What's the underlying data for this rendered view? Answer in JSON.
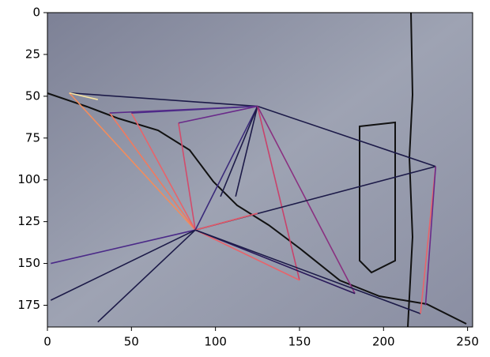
{
  "chart_data": {
    "type": "line",
    "xlim": [
      0,
      253
    ],
    "ylim": [
      188,
      0
    ],
    "xticks": [
      0,
      50,
      100,
      150,
      200,
      250
    ],
    "yticks": [
      0,
      25,
      50,
      75,
      100,
      125,
      150,
      175
    ],
    "series": [
      {
        "color": "#1c1a48",
        "x": [
          13,
          125
        ],
        "y": [
          48,
          56
        ]
      },
      {
        "color": "#f28c5c",
        "x": [
          13,
          88
        ],
        "y": [
          48,
          130
        ]
      },
      {
        "color": "#fbe7a3",
        "x": [
          13,
          30
        ],
        "y": [
          48,
          52
        ]
      },
      {
        "color": "#f07a5f",
        "x": [
          37,
          88
        ],
        "y": [
          60,
          130
        ]
      },
      {
        "color": "#e8636a",
        "x": [
          50,
          88
        ],
        "y": [
          60,
          130
        ]
      },
      {
        "color": "#d24b6b",
        "x": [
          78,
          88
        ],
        "y": [
          66,
          130
        ]
      },
      {
        "color": "#5a2a8a",
        "x": [
          37,
          125
        ],
        "y": [
          60,
          56
        ]
      },
      {
        "color": "#4b2a88",
        "x": [
          50,
          125
        ],
        "y": [
          60,
          56
        ]
      },
      {
        "color": "#6a2b8a",
        "x": [
          78,
          125
        ],
        "y": [
          66,
          56
        ]
      },
      {
        "color": "#1c1a48",
        "x": [
          125,
          231
        ],
        "y": [
          56,
          92
        ]
      },
      {
        "color": "#3b2a7a",
        "x": [
          125,
          88
        ],
        "y": [
          56,
          130
        ]
      },
      {
        "color": "#1c1a48",
        "x": [
          125,
          103
        ],
        "y": [
          56,
          110
        ]
      },
      {
        "color": "#1c1a48",
        "x": [
          125,
          112
        ],
        "y": [
          56,
          110
        ]
      },
      {
        "color": "#c8426b",
        "x": [
          125,
          150
        ],
        "y": [
          56,
          160
        ]
      },
      {
        "color": "#8a3080",
        "x": [
          125,
          183
        ],
        "y": [
          56,
          168
        ]
      },
      {
        "color": "#1c1a48",
        "x": [
          88,
          231
        ],
        "y": [
          130,
          92
        ]
      },
      {
        "color": "#e05a6a",
        "x": [
          88,
          125
        ],
        "y": [
          130,
          120
        ]
      },
      {
        "color": "#4b2a88",
        "x": [
          88,
          2
        ],
        "y": [
          130,
          150
        ]
      },
      {
        "color": "#1c1a48",
        "x": [
          88,
          2
        ],
        "y": [
          130,
          172
        ]
      },
      {
        "color": "#1c1a48",
        "x": [
          88,
          30
        ],
        "y": [
          130,
          185
        ]
      },
      {
        "color": "#e8636a",
        "x": [
          88,
          150
        ],
        "y": [
          130,
          160
        ]
      },
      {
        "color": "#2a1a5a",
        "x": [
          88,
          183
        ],
        "y": [
          130,
          168
        ]
      },
      {
        "color": "#1c1a48",
        "x": [
          88,
          222
        ],
        "y": [
          130,
          180
        ]
      },
      {
        "color": "#e8636a",
        "x": [
          231,
          222
        ],
        "y": [
          92,
          180
        ]
      },
      {
        "color": "#6a2b8a",
        "x": [
          231,
          225
        ],
        "y": [
          92,
          175
        ]
      }
    ]
  }
}
